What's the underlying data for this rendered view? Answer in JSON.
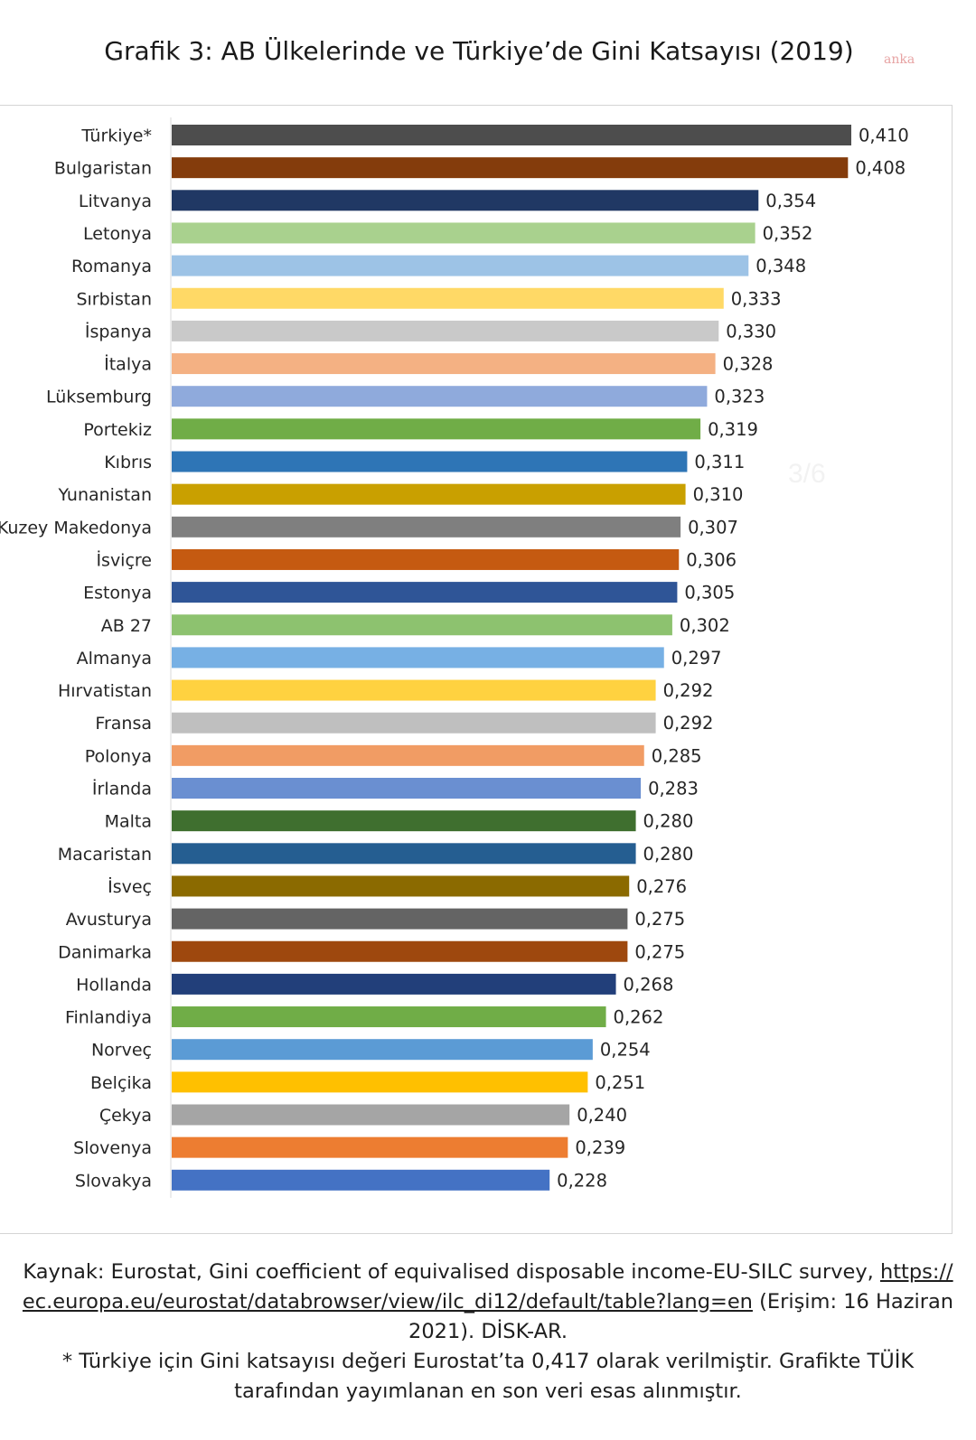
{
  "title": "Grafik 3: AB Ülkelerinde ve Türkiye’de Gini Katsayısı (2019)",
  "watermark": "anka",
  "page_counter": "3/6",
  "colors": {
    "text": "#1a1a1a",
    "frame_border": "#d4d4d4"
  },
  "chart_data": {
    "type": "bar",
    "orientation": "horizontal",
    "title": "Grafik 3: AB Ülkelerinde ve Türkiye’de Gini Katsayısı (2019)",
    "xlabel": "",
    "ylabel": "",
    "xlim": [
      0,
      0.41
    ],
    "grid": false,
    "legend": "none",
    "categories": [
      "Türkiye*",
      "Bulgaristan",
      "Litvanya",
      "Letonya",
      "Romanya",
      "Sırbistan",
      "İspanya",
      "İtalya",
      "Lüksemburg",
      "Portekiz",
      "Kıbrıs",
      "Yunanistan",
      "Kuzey Makedonya",
      "İsviçre",
      "Estonya",
      "AB 27",
      "Almanya",
      "Hırvatistan",
      "Fransa",
      "Polonya",
      "İrlanda",
      "Malta",
      "Macaristan",
      "İsveç",
      "Avusturya",
      "Danimarka",
      "Hollanda",
      "Finlandiya",
      "Norveç",
      "Belçika",
      "Çekya",
      "Slovenya",
      "Slovakya"
    ],
    "values": [
      0.41,
      0.408,
      0.354,
      0.352,
      0.348,
      0.333,
      0.33,
      0.328,
      0.323,
      0.319,
      0.311,
      0.31,
      0.307,
      0.306,
      0.305,
      0.302,
      0.297,
      0.292,
      0.292,
      0.285,
      0.283,
      0.28,
      0.28,
      0.276,
      0.275,
      0.275,
      0.268,
      0.262,
      0.254,
      0.251,
      0.24,
      0.239,
      0.228
    ],
    "value_labels": [
      "0,410",
      "0,408",
      "0,354",
      "0,352",
      "0,348",
      "0,333",
      "0,330",
      "0,328",
      "0,323",
      "0,319",
      "0,311",
      "0,310",
      "0,307",
      "0,306",
      "0,305",
      "0,302",
      "0,297",
      "0,292",
      "0,292",
      "0,285",
      "0,283",
      "0,280",
      "0,280",
      "0,276",
      "0,275",
      "0,275",
      "0,268",
      "0,262",
      "0,254",
      "0,251",
      "0,240",
      "0,239",
      "0,228"
    ],
    "bar_colors": [
      "#4d4d4d",
      "#843c0c",
      "#203864",
      "#a9d18e",
      "#9dc3e6",
      "#ffd966",
      "#c9c9c9",
      "#f4b183",
      "#8faadc",
      "#70ad47",
      "#2e75b6",
      "#c9a000",
      "#7f7f7f",
      "#c55a11",
      "#2f5597",
      "#8dc26f",
      "#77b0e4",
      "#ffd240",
      "#bfbfbf",
      "#f19c64",
      "#6a8fd1",
      "#3f6f2f",
      "#255e91",
      "#8b6a00",
      "#646464",
      "#9e480e",
      "#223f7a",
      "#70ad47",
      "#5b9bd5",
      "#ffc000",
      "#a5a5a5",
      "#ed7d31",
      "#4472c4"
    ]
  },
  "footer": {
    "source_prefix": "Kaynak: Eurostat, Gini coefficient of equivalised disposable income-EU-SILC survey, ",
    "link_part1": "https://",
    "link_part2": "ec.europa.eu/eurostat/databrowser/view/ilc_di12/default/table?lang=en",
    "access_suffix": " (Erişim: 16 Haziran",
    "line3": "2021). DİSK-AR.",
    "note_line1": "* Türkiye için Gini katsayısı değeri Eurostat’ta 0,417 olarak verilmiştir. Grafikte TÜİK",
    "note_line2": "tarafından yayımlanan en son veri esas alınmıştır."
  }
}
